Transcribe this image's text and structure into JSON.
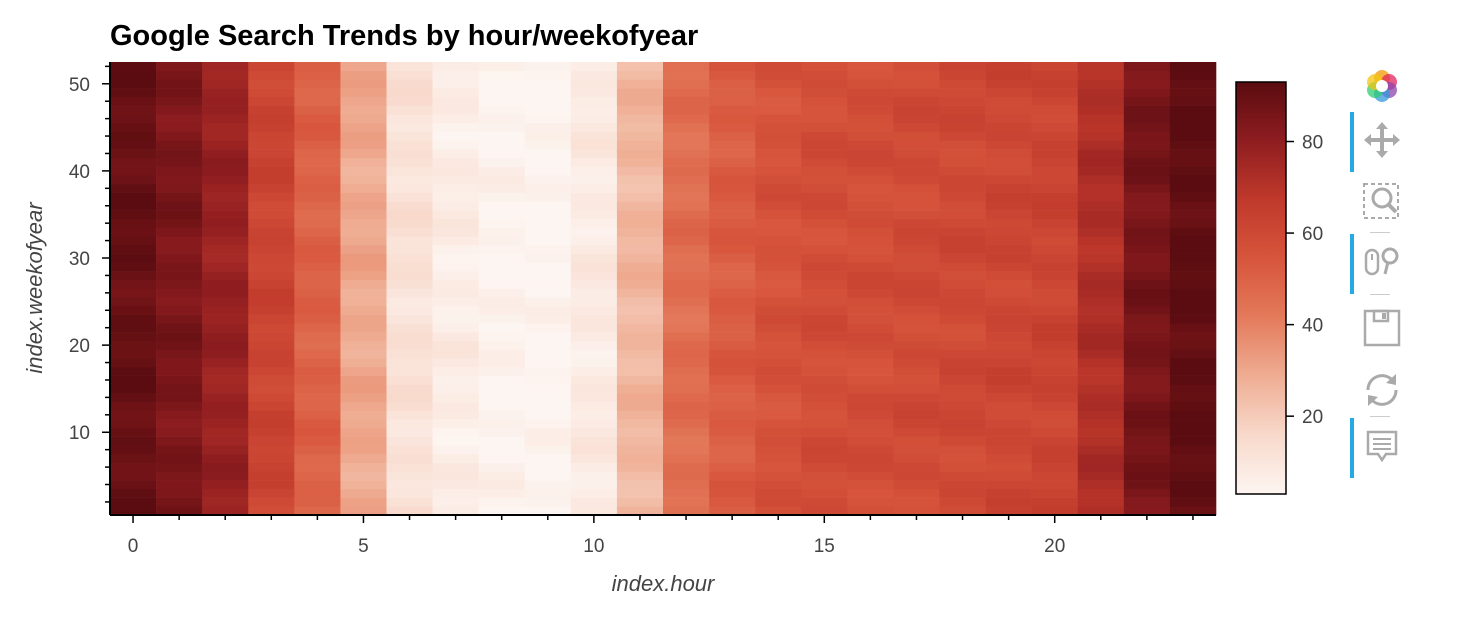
{
  "chart_data": {
    "type": "heatmap",
    "title": "Google Search Trends by hour/weekofyear",
    "xlabel": "index.hour",
    "ylabel": "index.weekofyear",
    "x": [
      0,
      1,
      2,
      3,
      4,
      5,
      6,
      7,
      8,
      9,
      10,
      11,
      12,
      13,
      14,
      15,
      16,
      17,
      18,
      19,
      20,
      21,
      22,
      23
    ],
    "y_range": [
      1,
      52
    ],
    "xticks": [
      0,
      5,
      10,
      15,
      20
    ],
    "yticks": [
      10,
      20,
      30,
      40,
      50
    ],
    "hour_profile": [
      90,
      85,
      78,
      62,
      50,
      30,
      12,
      7,
      4,
      3,
      8,
      26,
      46,
      52,
      56,
      58,
      58,
      59,
      60,
      61,
      62,
      72,
      86,
      92
    ],
    "colorbar": {
      "ticks": [
        20,
        40,
        60,
        80
      ],
      "range": [
        3,
        93
      ]
    },
    "colormap": [
      "#fdf5f1",
      "#f8d9cb",
      "#efad93",
      "#e47a5b",
      "#d7553c",
      "#c0392b",
      "#8f1d20",
      "#5a0c10"
    ]
  },
  "toolbar": {
    "tools": [
      "bokeh-logo-icon",
      "pan-icon",
      "box-zoom-icon",
      "wheel-zoom-icon",
      "save-icon",
      "reset-icon",
      "hover-icon"
    ]
  }
}
